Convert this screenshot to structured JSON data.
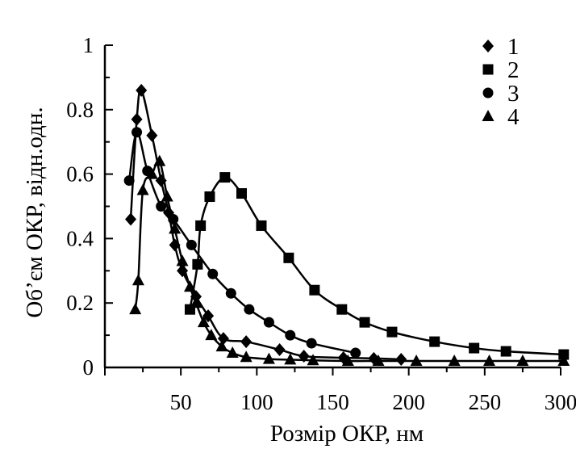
{
  "chart_data": {
    "type": "line",
    "xlabel": "Розмір ОКР, нм",
    "ylabel": "Об’єм ОКР, відн.одн.",
    "xlim": [
      0,
      300
    ],
    "ylim": [
      0,
      1
    ],
    "x_ticks": [
      50,
      100,
      150,
      200,
      250,
      300
    ],
    "x_tick_labels": [
      "50",
      "100",
      "150",
      "200",
      "250",
      "300"
    ],
    "y_ticks": [
      0,
      0.2,
      0.4,
      0.6,
      0.8,
      1
    ],
    "y_tick_labels": [
      "0",
      "0.2",
      "0.4",
      "0.6",
      "0.8",
      "1"
    ],
    "grid": false,
    "legend_position": "top-right",
    "marker_color": "#000000",
    "series": [
      {
        "name": "1",
        "marker": "diamond",
        "points": [
          [
            17,
            0.46
          ],
          [
            21,
            0.77
          ],
          [
            24,
            0.86
          ],
          [
            31,
            0.72
          ],
          [
            37,
            0.58
          ],
          [
            42,
            0.48
          ],
          [
            46,
            0.38
          ],
          [
            51,
            0.3
          ],
          [
            60,
            0.22
          ],
          [
            68,
            0.16
          ],
          [
            78,
            0.09
          ],
          [
            93,
            0.08
          ],
          [
            115,
            0.055
          ],
          [
            131,
            0.035
          ],
          [
            157,
            0.03
          ],
          [
            177,
            0.028
          ],
          [
            195,
            0.025
          ]
        ]
      },
      {
        "name": "2",
        "marker": "square",
        "points": [
          [
            56,
            0.18
          ],
          [
            61,
            0.32
          ],
          [
            63,
            0.44
          ],
          [
            69,
            0.53
          ],
          [
            79,
            0.59
          ],
          [
            90,
            0.54
          ],
          [
            103,
            0.44
          ],
          [
            121,
            0.34
          ],
          [
            138,
            0.24
          ],
          [
            156,
            0.18
          ],
          [
            171,
            0.14
          ],
          [
            189,
            0.11
          ],
          [
            217,
            0.08
          ],
          [
            243,
            0.06
          ],
          [
            264,
            0.05
          ],
          [
            302,
            0.04
          ]
        ]
      },
      {
        "name": "3",
        "marker": "circle",
        "points": [
          [
            16,
            0.58
          ],
          [
            21,
            0.73
          ],
          [
            28,
            0.61
          ],
          [
            37,
            0.5
          ],
          [
            45,
            0.46
          ],
          [
            57,
            0.38
          ],
          [
            71,
            0.29
          ],
          [
            83,
            0.23
          ],
          [
            95,
            0.18
          ],
          [
            108,
            0.14
          ],
          [
            122,
            0.1
          ],
          [
            136,
            0.075
          ],
          [
            165,
            0.045
          ]
        ]
      },
      {
        "name": "4",
        "marker": "triangle",
        "points": [
          [
            20,
            0.18
          ],
          [
            22,
            0.27
          ],
          [
            25,
            0.55
          ],
          [
            31,
            0.6
          ],
          [
            36,
            0.64
          ],
          [
            41,
            0.53
          ],
          [
            46,
            0.43
          ],
          [
            51,
            0.33
          ],
          [
            56,
            0.25
          ],
          [
            60,
            0.2
          ],
          [
            65,
            0.14
          ],
          [
            70,
            0.1
          ],
          [
            77,
            0.065
          ],
          [
            84,
            0.045
          ],
          [
            93,
            0.032
          ],
          [
            108,
            0.026
          ],
          [
            122,
            0.024
          ],
          [
            137,
            0.022
          ],
          [
            160,
            0.02
          ],
          [
            180,
            0.02
          ],
          [
            205,
            0.02
          ],
          [
            230,
            0.02
          ],
          [
            253,
            0.02
          ],
          [
            275,
            0.02
          ],
          [
            302,
            0.02
          ]
        ]
      }
    ]
  }
}
